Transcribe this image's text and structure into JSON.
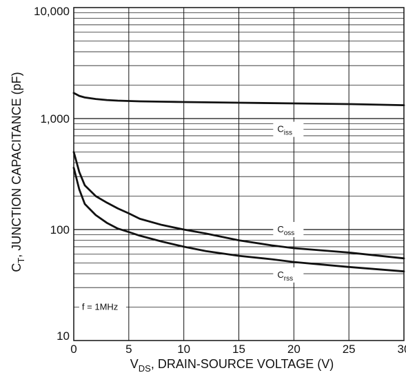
{
  "chart_data": {
    "type": "line",
    "ylabel_main": "C",
    "ylabel_sub": "T",
    "ylabel_rest": ", JUNCTION CAPACITANCE (pF)",
    "xlabel_main": "V",
    "xlabel_sub": "DS",
    "xlabel_rest": ", DRAIN-SOURCE VOLTAGE (V)",
    "xlim": [
      0,
      30
    ],
    "ylim": [
      10,
      10000
    ],
    "yscale": "log",
    "grid": true,
    "x_ticks": [
      "0",
      "5",
      "10",
      "15",
      "20",
      "25",
      "30"
    ],
    "y_ticks": [
      "10",
      "100",
      "1,000",
      "10,000"
    ],
    "annotation": "f = 1MHz",
    "series": [
      {
        "name_main": "C",
        "name_sub": "iss",
        "x": [
          0,
          0.5,
          1,
          2,
          3,
          4,
          5,
          6,
          8,
          10,
          15,
          20,
          25,
          30
        ],
        "y": [
          1700,
          1600,
          1550,
          1500,
          1470,
          1450,
          1440,
          1430,
          1420,
          1410,
          1390,
          1370,
          1350,
          1320
        ]
      },
      {
        "name_main": "C",
        "name_sub": "oss",
        "x": [
          0,
          0.5,
          1,
          2,
          3,
          4,
          5,
          6,
          8,
          10,
          12,
          15,
          18,
          20,
          25,
          30
        ],
        "y": [
          500,
          330,
          250,
          200,
          175,
          155,
          140,
          125,
          110,
          100,
          92,
          80,
          72,
          68,
          62,
          55
        ]
      },
      {
        "name_main": "C",
        "name_sub": "rss",
        "x": [
          0,
          0.5,
          1,
          2,
          3,
          4,
          5,
          6,
          8,
          10,
          12,
          15,
          18,
          20,
          25,
          30
        ],
        "y": [
          360,
          230,
          170,
          135,
          115,
          102,
          95,
          88,
          78,
          70,
          64,
          58,
          54,
          51,
          46,
          42
        ]
      }
    ]
  }
}
